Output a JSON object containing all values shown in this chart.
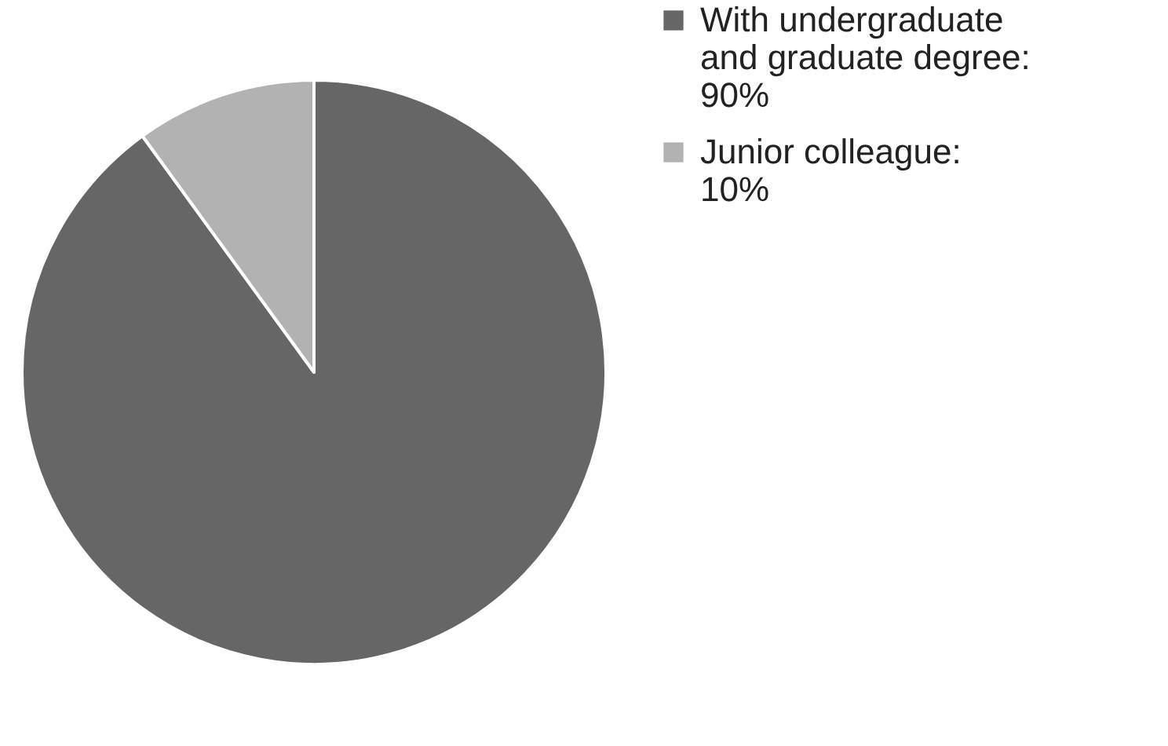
{
  "chart_data": {
    "type": "pie",
    "categories": [
      "With undergraduate and graduate degree: 90%",
      "Junior colleague: 10%"
    ],
    "values": [
      90,
      10
    ],
    "colors": [
      "#666666",
      "#b2b2b2"
    ],
    "legend": "right"
  }
}
